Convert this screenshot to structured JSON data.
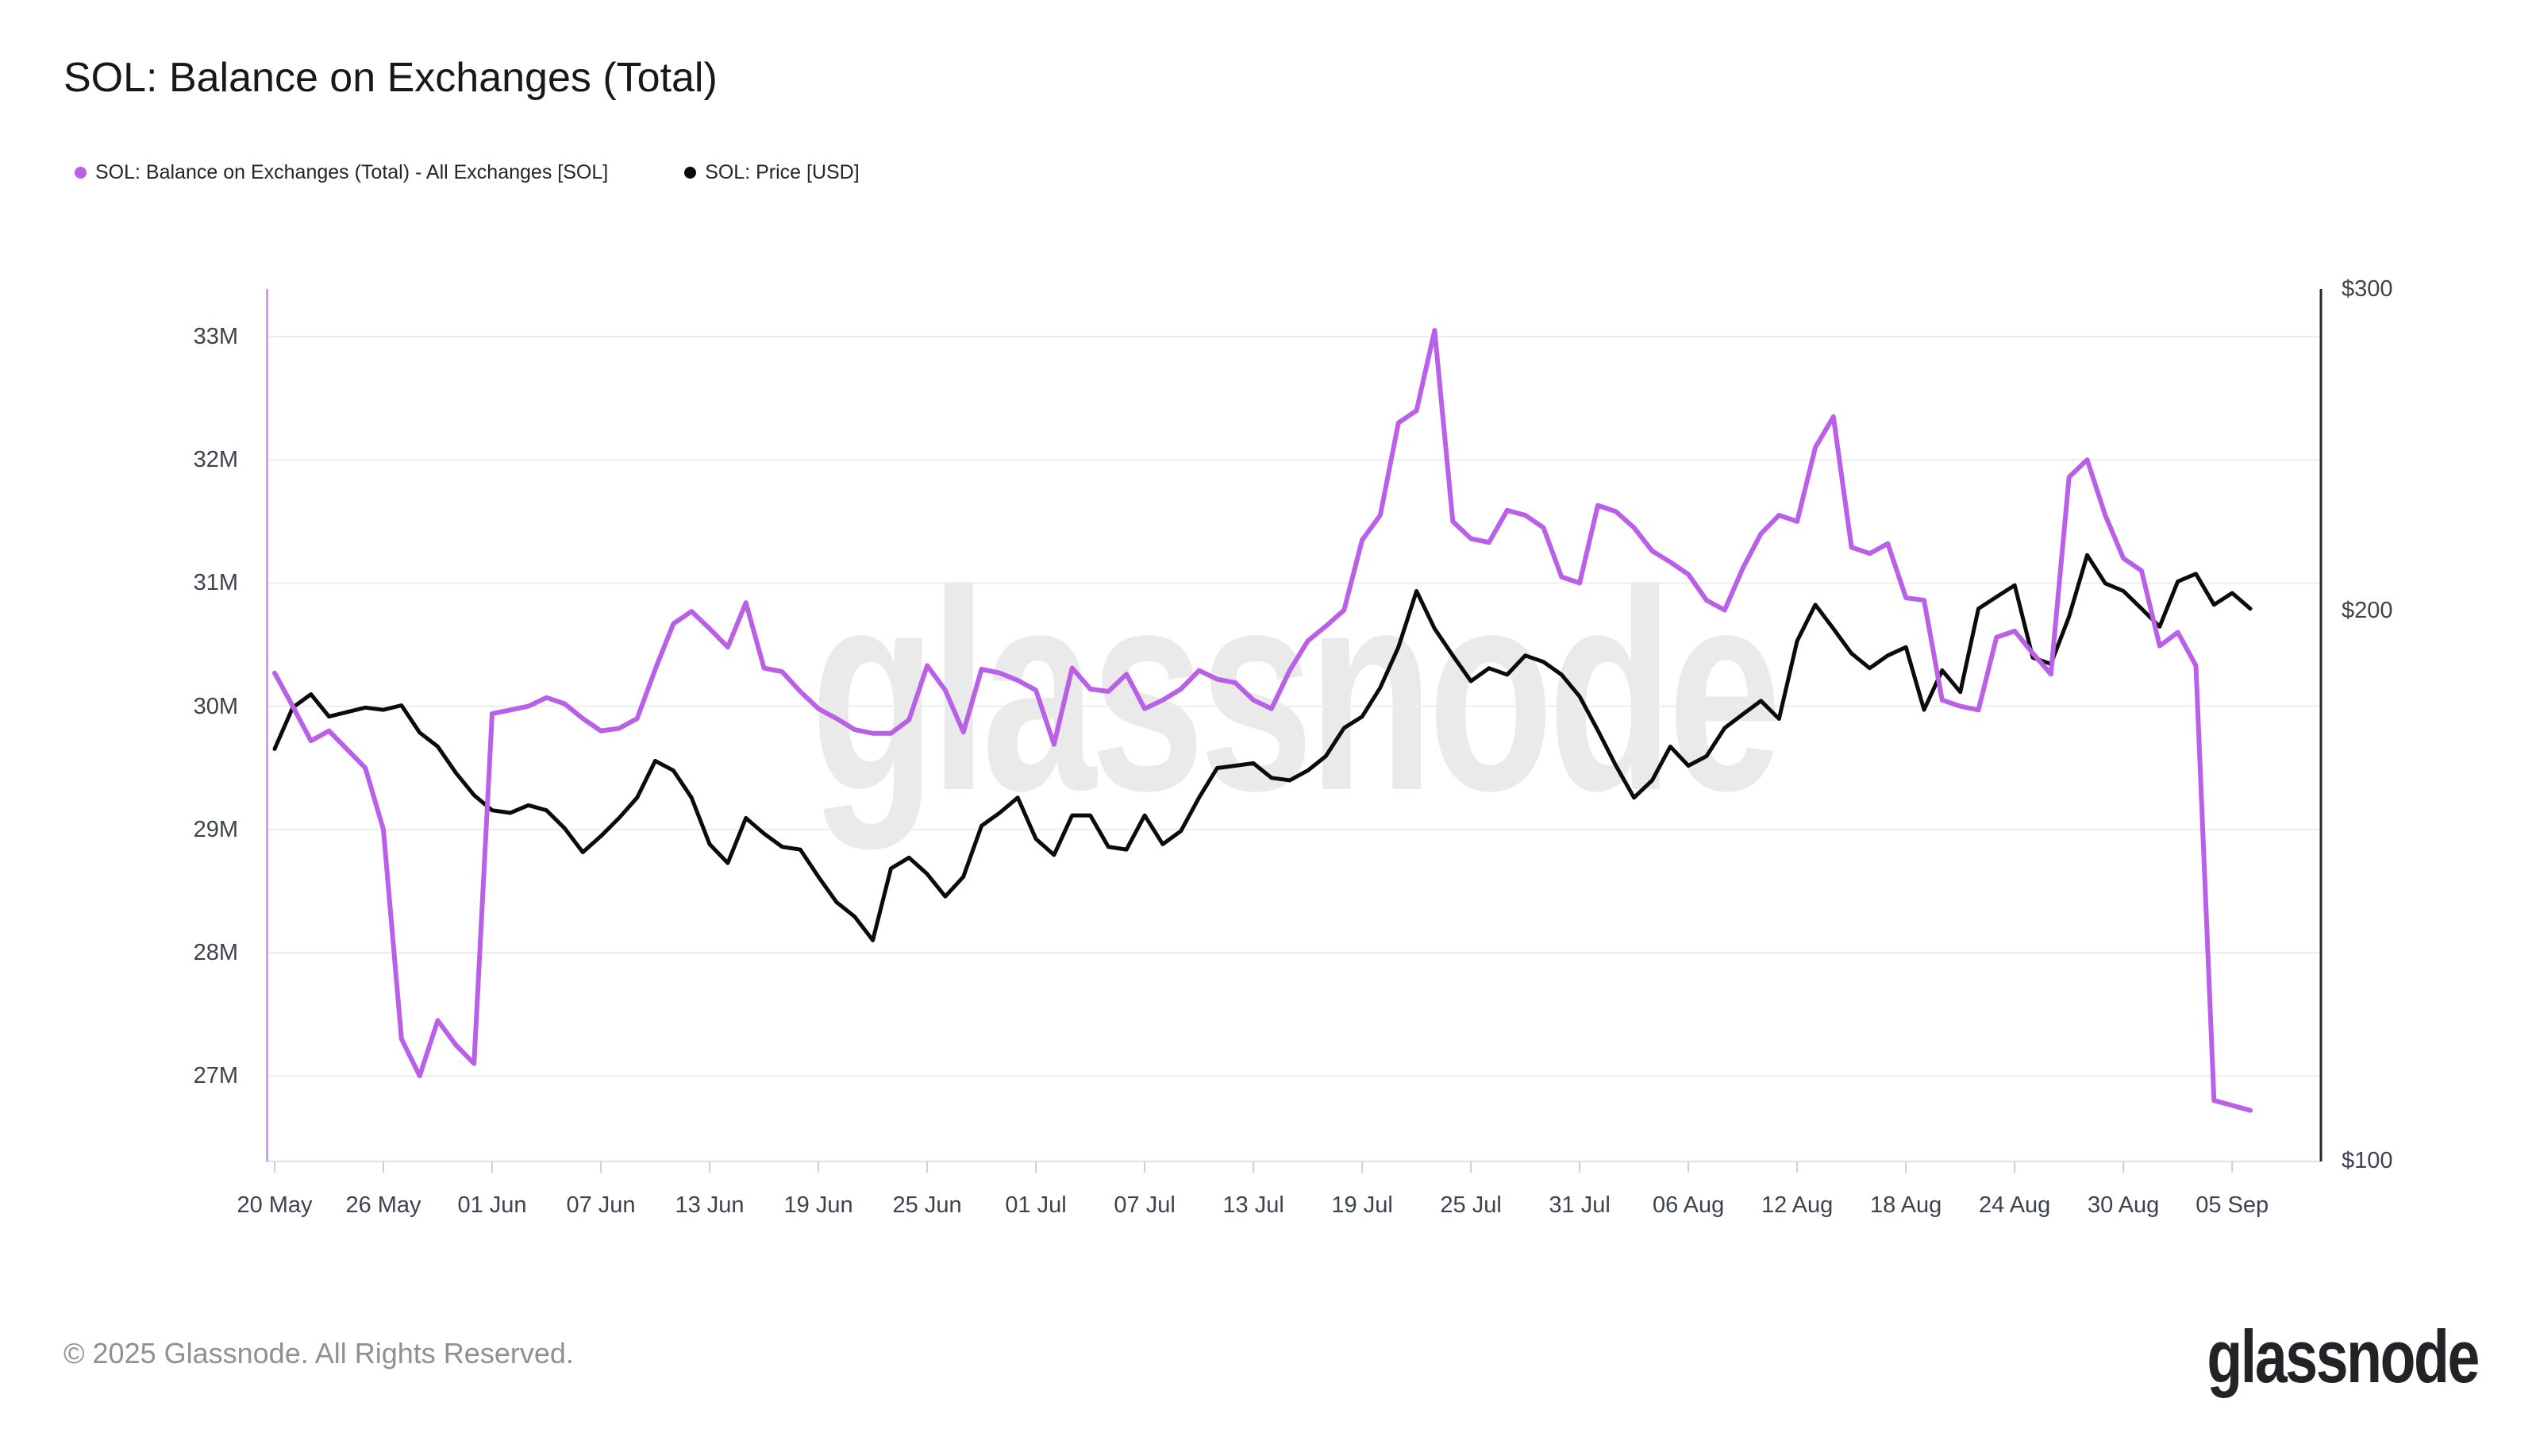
{
  "header": {
    "title": "SOL: Balance on Exchanges (Total)"
  },
  "legend": [
    {
      "key": "balance",
      "label": "SOL: Balance on Exchanges (Total) - All Exchanges [SOL]",
      "color": "#b95fe8"
    },
    {
      "key": "price",
      "label": "SOL: Price [USD]",
      "color": "#0b0b0d"
    }
  ],
  "watermark": {
    "text": "glassnode"
  },
  "footer": {
    "copyright": "© 2025 Glassnode. All Rights Reserved.",
    "brand": "glassnode"
  },
  "chart_data": {
    "type": "line",
    "title": "SOL: Balance on Exchanges (Total)",
    "x_range": {
      "start": "20 May",
      "end": "05 Sep",
      "interval": "daily",
      "points": 110
    },
    "x_tick_labels": [
      "20 May",
      "26 May",
      "01 Jun",
      "07 Jun",
      "13 Jun",
      "19 Jun",
      "25 Jun",
      "01 Jul",
      "07 Jul",
      "13 Jul",
      "19 Jul",
      "25 Jul",
      "31 Jul",
      "06 Aug",
      "12 Aug",
      "18 Aug",
      "24 Aug",
      "30 Aug",
      "05 Sep"
    ],
    "x_tick_day_indexes": [
      0,
      6,
      12,
      18,
      24,
      30,
      36,
      42,
      48,
      54,
      60,
      66,
      72,
      78,
      84,
      90,
      96,
      102,
      108
    ],
    "y_axis_left": {
      "scale": "linear",
      "unit": "SOL",
      "tick_labels": [
        "33M",
        "32M",
        "31M",
        "30M",
        "29M",
        "28M",
        "27M"
      ],
      "tick_values_millions": [
        33,
        32,
        31,
        30,
        29,
        28,
        27
      ]
    },
    "y_axis_right": {
      "scale": "log",
      "unit": "USD",
      "tick_labels": [
        "$300",
        "$200",
        "$100"
      ],
      "tick_values": [
        300,
        200,
        100
      ]
    },
    "grid": "horizontal-only",
    "legend_position": "top-left",
    "series": [
      {
        "name": "SOL: Balance on Exchanges (Total) - All Exchanges [SOL]",
        "axis": "left",
        "color": "#b95fe8",
        "unit": "millions SOL",
        "values": [
          30.27,
          30.0,
          29.72,
          29.8,
          29.65,
          29.5,
          29.0,
          27.3,
          27.0,
          27.45,
          27.25,
          27.1,
          29.94,
          29.97,
          30.0,
          30.07,
          30.02,
          29.9,
          29.8,
          29.82,
          29.9,
          30.3,
          30.67,
          30.77,
          30.63,
          30.48,
          30.84,
          30.31,
          30.28,
          30.12,
          29.98,
          29.9,
          29.81,
          29.78,
          29.78,
          29.89,
          30.33,
          30.13,
          29.79,
          30.3,
          30.27,
          30.21,
          30.13,
          29.69,
          30.31,
          30.14,
          30.12,
          30.26,
          29.98,
          30.05,
          30.14,
          30.29,
          30.22,
          30.19,
          30.05,
          29.98,
          30.29,
          30.53,
          30.65,
          30.78,
          31.35,
          31.55,
          32.3,
          32.4,
          33.05,
          31.5,
          31.36,
          31.33,
          31.59,
          31.55,
          31.45,
          31.05,
          31.0,
          31.63,
          31.58,
          31.45,
          31.26,
          31.17,
          31.07,
          30.86,
          30.78,
          31.12,
          31.4,
          31.55,
          31.5,
          32.1,
          32.35,
          31.29,
          31.24,
          31.32,
          30.88,
          30.86,
          30.05,
          30.0,
          29.97,
          30.56,
          30.61,
          30.43,
          30.26,
          31.86,
          32.0,
          31.55,
          31.2,
          31.1,
          30.49,
          30.6,
          30.33,
          26.8,
          26.76,
          26.72
        ]
      },
      {
        "name": "SOL: Price [USD]",
        "axis": "right",
        "color": "#0b0b0d",
        "unit": "USD",
        "values": [
          168,
          177,
          180,
          175,
          176,
          177,
          176.5,
          177.5,
          171.5,
          168.5,
          163,
          158.5,
          155.5,
          155,
          156.5,
          155.5,
          152,
          147.5,
          150.5,
          154,
          158,
          165.5,
          163.5,
          158,
          149,
          145.5,
          154,
          151,
          148.5,
          148,
          143,
          138.5,
          136,
          132,
          144.5,
          146.5,
          143.5,
          139.5,
          143,
          152.5,
          155,
          158,
          150,
          147,
          154.5,
          154.5,
          148.5,
          148,
          154.5,
          149,
          151.5,
          158,
          164,
          164.5,
          165,
          162,
          161.5,
          163.5,
          166.5,
          172.5,
          175,
          181.5,
          191,
          205,
          195.5,
          189,
          183,
          186,
          184.5,
          189,
          187.5,
          184.5,
          179.5,
          172,
          164.5,
          158,
          161.5,
          168.5,
          164.5,
          166.5,
          172.5,
          175.5,
          178.5,
          174.5,
          192.5,
          201.5,
          195.5,
          189.5,
          186,
          189,
          191,
          176.5,
          185.5,
          180.5,
          200.5,
          203.5,
          206.5,
          188.5,
          187,
          198.5,
          214.5,
          207,
          205,
          200.5,
          196,
          207.5,
          209.5,
          201.5,
          204.5,
          200.5
        ]
      }
    ],
    "style": {
      "grid_color": "#ededed",
      "left_axis_line_color": "#d49bf2",
      "right_axis_line_color": "#26262b",
      "bottom_axis_line_color": "#e0e0e0",
      "tick_color": "#cfcfcf",
      "balance_line_width": 6,
      "price_line_width": 5
    }
  }
}
